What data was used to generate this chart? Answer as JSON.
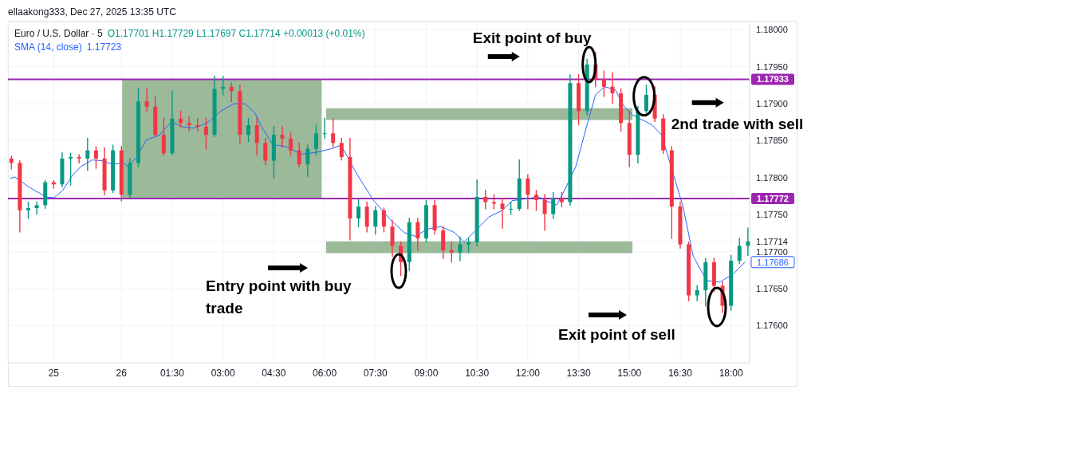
{
  "chart_data": {
    "type": "candlestick",
    "title": "Euro / U.S. Dollar · 5",
    "annotations": [
      "ellaakong333, Dec 27, 2025 13:35 UTC",
      "O1.17701 H1.17729 L1.17697 C1.17714 +0.00013 (+0.01%)",
      "1.17723",
      {
        "text": "Exit point of buy",
        "x": "2025-12-26T13:43",
        "y": 1.17953
      },
      {
        "text": "2nd trade with sell",
        "x": "2025-12-26T15:26",
        "y": 1.1791
      },
      "Entry point with buy trade",
      "Exit point of sell",
      {
        "text": "1.17686",
        "x": "2025-12-26T18:25",
        "y": 1.17686
      }
    ],
    "x": [
      "2025-12-25T20:45",
      "2025-12-25T21:00",
      "2025-12-25T21:15",
      "2025-12-25T21:30",
      "2025-12-25T21:45",
      "2025-12-25T22:00",
      "2025-12-25T22:15",
      "2025-12-25T22:30",
      "2025-12-25T22:45",
      "2025-12-25T23:00",
      "2025-12-25T23:15",
      "2025-12-25T23:30",
      "2025-12-25T23:45",
      "2025-12-26T00:00",
      "2025-12-26T00:15",
      "2025-12-26T00:30",
      "2025-12-26T00:45",
      "2025-12-26T01:00",
      "2025-12-26T01:15",
      "2025-12-26T01:30",
      "2025-12-26T01:45",
      "2025-12-26T02:00",
      "2025-12-26T02:15",
      "2025-12-26T02:30",
      "2025-12-26T02:45",
      "2025-12-26T03:00",
      "2025-12-26T03:15",
      "2025-12-26T03:30",
      "2025-12-26T03:45",
      "2025-12-26T04:00",
      "2025-12-26T04:15",
      "2025-12-26T04:30",
      "2025-12-26T04:45",
      "2025-12-26T05:00",
      "2025-12-26T05:15",
      "2025-12-26T05:30",
      "2025-12-26T05:45",
      "2025-12-26T06:00",
      "2025-12-26T06:15",
      "2025-12-26T06:30",
      "2025-12-26T06:45",
      "2025-12-26T07:00",
      "2025-12-26T07:15",
      "2025-12-26T07:30",
      "2025-12-26T07:45",
      "2025-12-26T08:00",
      "2025-12-26T08:15",
      "2025-12-26T08:30",
      "2025-12-26T08:45",
      "2025-12-26T09:00",
      "2025-12-26T09:15",
      "2025-12-26T09:30",
      "2025-12-26T09:45",
      "2025-12-26T10:00",
      "2025-12-26T10:15",
      "2025-12-26T10:30",
      "2025-12-26T10:45",
      "2025-12-26T11:00",
      "2025-12-26T11:15",
      "2025-12-26T11:30",
      "2025-12-26T11:45",
      "2025-12-26T12:00",
      "2025-12-26T12:15",
      "2025-12-26T12:30",
      "2025-12-26T12:45",
      "2025-12-26T13:00",
      "2025-12-26T13:15",
      "2025-12-26T13:30",
      "2025-12-26T13:45",
      "2025-12-26T14:00",
      "2025-12-26T14:15",
      "2025-12-26T14:30",
      "2025-12-26T14:45",
      "2025-12-26T15:00",
      "2025-12-26T15:15",
      "2025-12-26T15:30",
      "2025-12-26T15:45",
      "2025-12-26T16:00",
      "2025-12-26T16:15",
      "2025-12-26T16:30",
      "2025-12-26T16:45",
      "2025-12-26T17:00",
      "2025-12-26T17:15",
      "2025-12-26T17:30",
      "2025-12-26T17:45",
      "2025-12-26T18:00",
      "2025-12-26T18:15",
      "2025-12-26T18:30"
    ],
    "ohlc": [
      [
        1.17826,
        1.17829,
        1.17812,
        1.1782
      ],
      [
        1.1782,
        1.17823,
        1.17727,
        1.17756
      ],
      [
        1.17756,
        1.17767,
        1.17745,
        1.17759
      ],
      [
        1.17759,
        1.17767,
        1.17751,
        1.17763
      ],
      [
        1.17763,
        1.17796,
        1.17759,
        1.17794
      ],
      [
        1.17794,
        1.17796,
        1.17786,
        1.17791
      ],
      [
        1.17791,
        1.17834,
        1.17788,
        1.17826
      ],
      [
        1.17826,
        1.17833,
        1.1779,
        1.17828
      ],
      [
        1.17828,
        1.17831,
        1.1782,
        1.17826
      ],
      [
        1.17826,
        1.17853,
        1.1781,
        1.17837
      ],
      [
        1.17837,
        1.17842,
        1.17813,
        1.17826
      ],
      [
        1.17826,
        1.1784,
        1.17777,
        1.17783
      ],
      [
        1.17783,
        1.17844,
        1.1778,
        1.17837
      ],
      [
        1.17837,
        1.17842,
        1.17769,
        1.17777
      ],
      [
        1.17777,
        1.17826,
        1.17772,
        1.1782
      ],
      [
        1.1782,
        1.1792,
        1.17815,
        1.17903
      ],
      [
        1.17903,
        1.1792,
        1.1789,
        1.17896
      ],
      [
        1.17896,
        1.1791,
        1.17855,
        1.17858
      ],
      [
        1.17858,
        1.1788,
        1.17831,
        1.17833
      ],
      [
        1.17833,
        1.17917,
        1.17831,
        1.1788
      ],
      [
        1.1788,
        1.1789,
        1.17869,
        1.17874
      ],
      [
        1.17874,
        1.17882,
        1.17863,
        1.17871
      ],
      [
        1.17871,
        1.1788,
        1.17863,
        1.17869
      ],
      [
        1.17869,
        1.1788,
        1.17839,
        1.17858
      ],
      [
        1.17858,
        1.17937,
        1.17856,
        1.1792
      ],
      [
        1.1792,
        1.17937,
        1.17912,
        1.17923
      ],
      [
        1.17923,
        1.17928,
        1.17903,
        1.17917
      ],
      [
        1.17917,
        1.17925,
        1.17847,
        1.17858
      ],
      [
        1.17858,
        1.1788,
        1.17849,
        1.17871
      ],
      [
        1.17871,
        1.1788,
        1.17831,
        1.17847
      ],
      [
        1.17847,
        1.17853,
        1.17818,
        1.17823
      ],
      [
        1.17823,
        1.17869,
        1.17799,
        1.17858
      ],
      [
        1.17858,
        1.17869,
        1.17842,
        1.17853
      ],
      [
        1.17853,
        1.1786,
        1.17831,
        1.17837
      ],
      [
        1.17837,
        1.17847,
        1.17815,
        1.17818
      ],
      [
        1.17818,
        1.17844,
        1.17802,
        1.17839
      ],
      [
        1.17839,
        1.17871,
        1.17831,
        1.1786
      ],
      [
        1.1786,
        1.1788,
        1.17853,
        1.1786
      ],
      [
        1.1786,
        1.1788,
        1.17842,
        1.17847
      ],
      [
        1.17847,
        1.17853,
        1.17824,
        1.17828
      ],
      [
        1.17828,
        1.17853,
        1.17716,
        1.17745
      ],
      [
        1.17745,
        1.1777,
        1.17734,
        1.17761
      ],
      [
        1.17761,
        1.17767,
        1.17727,
        1.17734
      ],
      [
        1.17734,
        1.17761,
        1.17724,
        1.17756
      ],
      [
        1.17756,
        1.17759,
        1.17727,
        1.17734
      ],
      [
        1.17734,
        1.17742,
        1.17694,
        1.17708
      ],
      [
        1.17708,
        1.17713,
        1.17668,
        1.17686
      ],
      [
        1.17686,
        1.17745,
        1.17675,
        1.1774
      ],
      [
        1.1774,
        1.17745,
        1.17702,
        1.17718
      ],
      [
        1.17718,
        1.17769,
        1.17713,
        1.17763
      ],
      [
        1.17763,
        1.17769,
        1.17724,
        1.17729
      ],
      [
        1.17729,
        1.17734,
        1.17691,
        1.17702
      ],
      [
        1.17702,
        1.17713,
        1.17686,
        1.17699
      ],
      [
        1.17699,
        1.1772,
        1.17688,
        1.1771
      ],
      [
        1.1771,
        1.17718,
        1.17699,
        1.17713
      ],
      [
        1.17713,
        1.17797,
        1.17708,
        1.17774
      ],
      [
        1.17774,
        1.17783,
        1.17758,
        1.17767
      ],
      [
        1.17767,
        1.17777,
        1.17758,
        1.17765
      ],
      [
        1.17765,
        1.17772,
        1.17732,
        1.17758
      ],
      [
        1.17758,
        1.17767,
        1.17751,
        1.17758
      ],
      [
        1.17758,
        1.17824,
        1.17756,
        1.17799
      ],
      [
        1.17799,
        1.17804,
        1.17758,
        1.17777
      ],
      [
        1.17777,
        1.17783,
        1.17756,
        1.1777
      ],
      [
        1.1777,
        1.17777,
        1.17729,
        1.17751
      ],
      [
        1.17751,
        1.1778,
        1.17745,
        1.17772
      ],
      [
        1.17772,
        1.1778,
        1.17761,
        1.17767
      ],
      [
        1.17767,
        1.17939,
        1.17763,
        1.17928
      ],
      [
        1.17928,
        1.17939,
        1.17872,
        1.1789
      ],
      [
        1.1789,
        1.1796,
        1.17885,
        1.17953
      ],
      [
        1.17953,
        1.17969,
        1.17923,
        1.17933
      ],
      [
        1.17933,
        1.17944,
        1.1791,
        1.17923
      ],
      [
        1.17923,
        1.17942,
        1.17901,
        1.17914
      ],
      [
        1.17914,
        1.1792,
        1.17863,
        1.17874
      ],
      [
        1.17874,
        1.1789,
        1.17815,
        1.17831
      ],
      [
        1.17831,
        1.17896,
        1.1782,
        1.1789
      ],
      [
        1.1789,
        1.17925,
        1.17888,
        1.17912
      ],
      [
        1.17912,
        1.17923,
        1.17876,
        1.1788
      ],
      [
        1.1788,
        1.17885,
        1.17833,
        1.17837
      ],
      [
        1.17837,
        1.17842,
        1.17718,
        1.17761
      ],
      [
        1.17761,
        1.17767,
        1.17705,
        1.1771
      ],
      [
        1.1771,
        1.17713,
        1.17634,
        1.17641
      ],
      [
        1.17641,
        1.17654,
        1.17634,
        1.17648
      ],
      [
        1.17648,
        1.17691,
        1.17627,
        1.17686
      ],
      [
        1.17686,
        1.17691,
        1.17646,
        1.17654
      ],
      [
        1.17654,
        1.17659,
        1.17618,
        1.17627
      ],
      [
        1.17627,
        1.17695,
        1.17621,
        1.17688
      ],
      [
        1.17688,
        1.17718,
        1.17684,
        1.17708
      ],
      [
        1.17708,
        1.17732,
        1.17695,
        1.17714
      ]
    ],
    "colors": [
      "#f23645",
      "#f23645",
      "#089981",
      "#089981",
      "#089981",
      "#f23645",
      "#089981",
      "#089981",
      "#f23645",
      "#089981",
      "#f23645",
      "#f23645",
      "#089981",
      "#f23645",
      "#089981",
      "#089981",
      "#f23645",
      "#f23645",
      "#f23645",
      "#089981",
      "#f23645",
      "#f23645",
      "#f23645",
      "#f23645",
      "#089981",
      "#089981",
      "#f23645",
      "#f23645",
      "#089981",
      "#f23645",
      "#f23645",
      "#089981",
      "#f23645",
      "#f23645",
      "#f23645",
      "#089981",
      "#089981",
      "#089981",
      "#f23645",
      "#f23645",
      "#f23645",
      "#089981",
      "#f23645",
      "#089981",
      "#f23645",
      "#f23645",
      "#f23645",
      "#089981",
      "#f23645",
      "#089981",
      "#f23645",
      "#f23645",
      "#f23645",
      "#089981",
      "#089981",
      "#089981",
      "#f23645",
      "#f23645",
      "#f23645",
      "#089981",
      "#089981",
      "#f23645",
      "#f23645",
      "#f23645",
      "#089981",
      "#f23645",
      "#089981",
      "#f23645",
      "#089981",
      "#f23645",
      "#f23645",
      "#f23645",
      "#f23645",
      "#f23645",
      "#089981",
      "#089981",
      "#f23645",
      "#f23645",
      "#f23645",
      "#f23645",
      "#f23645",
      "#089981",
      "#089981",
      "#f23645",
      "#f23645",
      "#089981",
      "#089981",
      "#089981"
    ],
    "series": [
      {
        "name": "SMA (14, close)",
        "type": "line",
        "color": "#2962ff",
        "x": [
          "2025-12-25T20:43",
          "2025-12-25T20:51",
          "2025-12-25T21:19",
          "2025-12-25T21:47",
          "2025-12-25T22:01",
          "2025-12-25T22:16",
          "2025-12-25T22:34",
          "2025-12-25T22:48",
          "2025-12-25T23:08",
          "2025-12-25T23:26",
          "2025-12-25T23:44",
          "2025-12-26T00:04",
          "2025-12-26T00:11",
          "2025-12-26T00:25",
          "2025-12-26T00:44",
          "2025-12-26T01:08",
          "2025-12-26T01:29",
          "2025-12-26T01:46",
          "2025-12-26T02:08",
          "2025-12-26T02:32",
          "2025-12-26T02:56",
          "2025-12-26T03:19",
          "2025-12-26T03:39",
          "2025-12-26T03:57",
          "2025-12-26T04:08",
          "2025-12-26T04:28",
          "2025-12-26T04:51",
          "2025-12-26T05:19",
          "2025-12-26T05:43",
          "2025-12-26T06:11",
          "2025-12-26T06:29",
          "2025-12-26T06:58",
          "2025-12-26T07:26",
          "2025-12-26T07:57",
          "2025-12-26T08:21",
          "2025-12-26T08:40",
          "2025-12-26T09:04",
          "2025-12-26T09:26",
          "2025-12-26T09:50",
          "2025-12-26T10:07",
          "2025-12-26T10:28",
          "2025-12-26T10:51",
          "2025-12-26T11:15",
          "2025-12-26T11:32",
          "2025-12-26T12:19",
          "2025-12-26T12:32",
          "2025-12-26T12:51",
          "2025-12-26T13:05",
          "2025-12-26T13:25",
          "2025-12-26T13:43",
          "2025-12-26T14:00",
          "2025-12-26T14:16",
          "2025-12-26T14:35",
          "2025-12-26T14:49",
          "2025-12-26T15:05",
          "2025-12-26T15:39",
          "2025-12-26T15:57",
          "2025-12-26T16:16",
          "2025-12-26T16:35",
          "2025-12-26T16:53",
          "2025-12-26T17:17",
          "2025-12-26T17:40",
          "2025-12-26T18:04",
          "2025-12-26T18:25"
        ],
        "values": [
          1.17799,
          1.17801,
          1.17786,
          1.17774,
          1.17773,
          1.17783,
          1.17804,
          1.17815,
          1.17824,
          1.17823,
          1.17818,
          1.1782,
          1.17815,
          1.17826,
          1.17851,
          1.17858,
          1.17876,
          1.17869,
          1.17867,
          1.17874,
          1.1789,
          1.179,
          1.179,
          1.17887,
          1.17869,
          1.17845,
          1.17842,
          1.17832,
          1.17834,
          1.17839,
          1.17844,
          1.17804,
          1.1777,
          1.17743,
          1.17726,
          1.17721,
          1.17731,
          1.17734,
          1.17726,
          1.17713,
          1.17729,
          1.17747,
          1.17756,
          1.17769,
          1.17774,
          1.17769,
          1.17763,
          1.17783,
          1.17815,
          1.17866,
          1.17912,
          1.17923,
          1.17919,
          1.17898,
          1.17885,
          1.17872,
          1.17858,
          null,
          1.17761,
          1.17694,
          1.17661,
          1.17659,
          1.1767,
          1.17686
        ]
      }
    ],
    "ref_lines": [
      {
        "axis": "y",
        "value": 1.17933,
        "label": "1.17933",
        "color": "#9c27b0"
      },
      {
        "axis": "y",
        "value": 1.17772,
        "label": "1.17772",
        "color": "#9c27b0"
      }
    ],
    "bands": [
      {
        "axis": "y",
        "from": 1.17772,
        "to": 1.17933,
        "color": "#9cb99a"
      },
      {
        "axis": "y",
        "from": 1.17878,
        "to": 1.17894,
        "color": "#9cb99a"
      },
      {
        "axis": "y",
        "from": 1.17698,
        "to": 1.17714,
        "color": "#9cb99a"
      }
    ],
    "xlim": [
      "2025-12-25T20:39",
      "2025-12-26T18:33"
    ],
    "xticks": [
      {
        "value": "2025-12-25T22:00",
        "label": "25"
      },
      {
        "value": "2025-12-26T00:00",
        "label": "26"
      },
      {
        "value": "2025-12-26T01:30",
        "label": "01:30"
      },
      {
        "value": "2025-12-26T03:00",
        "label": "03:00"
      },
      {
        "value": "2025-12-26T04:30",
        "label": "04:30"
      },
      {
        "value": "2025-12-26T06:00",
        "label": "06:00"
      },
      {
        "value": "2025-12-26T07:30",
        "label": "07:30"
      },
      {
        "value": "2025-12-26T09:00",
        "label": "09:00"
      },
      {
        "value": "2025-12-26T10:30",
        "label": "10:30"
      },
      {
        "value": "2025-12-26T12:00",
        "label": "12:00"
      },
      {
        "value": "2025-12-26T13:30",
        "label": "13:30"
      },
      {
        "value": "2025-12-26T15:00",
        "label": "15:00"
      },
      {
        "value": "2025-12-26T16:30",
        "label": "16:30"
      },
      {
        "value": "2025-12-26T18:00",
        "label": "18:00"
      }
    ],
    "ylim": [
      1.1755,
      1.1801
    ],
    "yticks": [
      {
        "value": 1.176,
        "label": "1.17600"
      },
      {
        "value": 1.1765,
        "label": "1.17650"
      },
      {
        "value": 1.177,
        "label": "1.17700"
      },
      {
        "value": 1.17714,
        "label": "1.17714"
      },
      {
        "value": 1.1775,
        "label": "1.17750"
      },
      {
        "value": 1.178,
        "label": "1.17800"
      },
      {
        "value": 1.1785,
        "label": "1.17850"
      },
      {
        "value": 1.179,
        "label": "1.17900"
      },
      {
        "value": 1.1795,
        "label": "1.17950"
      },
      {
        "value": 1.18,
        "label": "1.18000"
      }
    ],
    "grid": true,
    "legend": "top left"
  }
}
